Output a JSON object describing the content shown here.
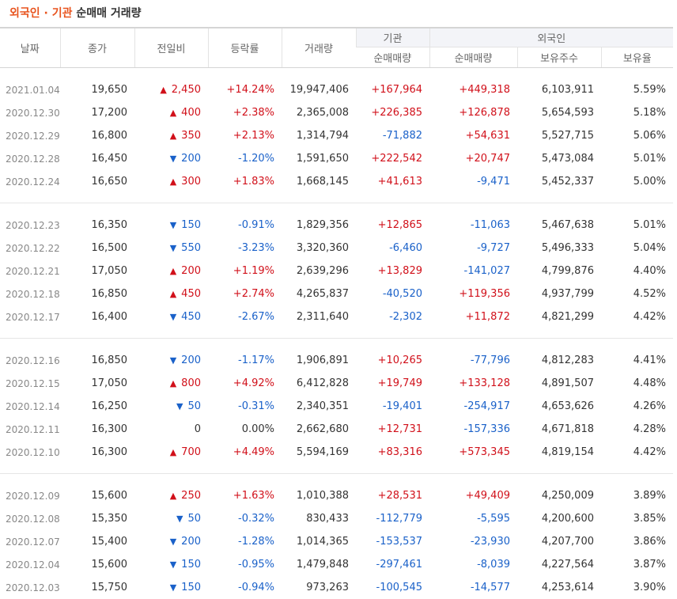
{
  "header": {
    "title_highlight": "외국인 · 기관",
    "title_rest": "순매매 거래량"
  },
  "columns": {
    "date": "날짜",
    "close": "종가",
    "diff": "전일비",
    "rate": "등락률",
    "volume": "거래량",
    "inst_group": "기관",
    "inst_net": "순매매량",
    "foreign_group": "외국인",
    "foreign_net": "순매매량",
    "foreign_hold": "보유주수",
    "foreign_ratio": "보유율"
  },
  "colors": {
    "up": "#d1101a",
    "down": "#1a61c9",
    "title_accent": "#e8541e"
  },
  "rows": [
    {
      "date": "2021.01.04",
      "close": "19,650",
      "dir": "up",
      "diff": "2,450",
      "rate": "+14.24%",
      "volume": "19,947,406",
      "inst": "+167,964",
      "fnet": "+449,318",
      "fhold": "6,103,911",
      "fratio": "5.59%"
    },
    {
      "date": "2020.12.30",
      "close": "17,200",
      "dir": "up",
      "diff": "400",
      "rate": "+2.38%",
      "volume": "2,365,008",
      "inst": "+226,385",
      "fnet": "+126,878",
      "fhold": "5,654,593",
      "fratio": "5.18%"
    },
    {
      "date": "2020.12.29",
      "close": "16,800",
      "dir": "up",
      "diff": "350",
      "rate": "+2.13%",
      "volume": "1,314,794",
      "inst": "-71,882",
      "fnet": "+54,631",
      "fhold": "5,527,715",
      "fratio": "5.06%"
    },
    {
      "date": "2020.12.28",
      "close": "16,450",
      "dir": "down",
      "diff": "200",
      "rate": "-1.20%",
      "volume": "1,591,650",
      "inst": "+222,542",
      "fnet": "+20,747",
      "fhold": "5,473,084",
      "fratio": "5.01%"
    },
    {
      "date": "2020.12.24",
      "close": "16,650",
      "dir": "up",
      "diff": "300",
      "rate": "+1.83%",
      "volume": "1,668,145",
      "inst": "+41,613",
      "fnet": "-9,471",
      "fhold": "5,452,337",
      "fratio": "5.00%"
    },
    {
      "date": "2020.12.23",
      "close": "16,350",
      "dir": "down",
      "diff": "150",
      "rate": "-0.91%",
      "volume": "1,829,356",
      "inst": "+12,865",
      "fnet": "-11,063",
      "fhold": "5,467,638",
      "fratio": "5.01%"
    },
    {
      "date": "2020.12.22",
      "close": "16,500",
      "dir": "down",
      "diff": "550",
      "rate": "-3.23%",
      "volume": "3,320,360",
      "inst": "-6,460",
      "fnet": "-9,727",
      "fhold": "5,496,333",
      "fratio": "5.04%"
    },
    {
      "date": "2020.12.21",
      "close": "17,050",
      "dir": "up",
      "diff": "200",
      "rate": "+1.19%",
      "volume": "2,639,296",
      "inst": "+13,829",
      "fnet": "-141,027",
      "fhold": "4,799,876",
      "fratio": "4.40%"
    },
    {
      "date": "2020.12.18",
      "close": "16,850",
      "dir": "up",
      "diff": "450",
      "rate": "+2.74%",
      "volume": "4,265,837",
      "inst": "-40,520",
      "fnet": "+119,356",
      "fhold": "4,937,799",
      "fratio": "4.52%"
    },
    {
      "date": "2020.12.17",
      "close": "16,400",
      "dir": "down",
      "diff": "450",
      "rate": "-2.67%",
      "volume": "2,311,640",
      "inst": "-2,302",
      "fnet": "+11,872",
      "fhold": "4,821,299",
      "fratio": "4.42%"
    },
    {
      "date": "2020.12.16",
      "close": "16,850",
      "dir": "down",
      "diff": "200",
      "rate": "-1.17%",
      "volume": "1,906,891",
      "inst": "+10,265",
      "fnet": "-77,796",
      "fhold": "4,812,283",
      "fratio": "4.41%"
    },
    {
      "date": "2020.12.15",
      "close": "17,050",
      "dir": "up",
      "diff": "800",
      "rate": "+4.92%",
      "volume": "6,412,828",
      "inst": "+19,749",
      "fnet": "+133,128",
      "fhold": "4,891,507",
      "fratio": "4.48%"
    },
    {
      "date": "2020.12.14",
      "close": "16,250",
      "dir": "down",
      "diff": "50",
      "rate": "-0.31%",
      "volume": "2,340,351",
      "inst": "-19,401",
      "fnet": "-254,917",
      "fhold": "4,653,626",
      "fratio": "4.26%"
    },
    {
      "date": "2020.12.11",
      "close": "16,300",
      "dir": "none",
      "diff": "0",
      "rate": "0.00%",
      "volume": "2,662,680",
      "inst": "+12,731",
      "fnet": "-157,336",
      "fhold": "4,671,818",
      "fratio": "4.28%"
    },
    {
      "date": "2020.12.10",
      "close": "16,300",
      "dir": "up",
      "diff": "700",
      "rate": "+4.49%",
      "volume": "5,594,169",
      "inst": "+83,316",
      "fnet": "+573,345",
      "fhold": "4,819,154",
      "fratio": "4.42%"
    },
    {
      "date": "2020.12.09",
      "close": "15,600",
      "dir": "up",
      "diff": "250",
      "rate": "+1.63%",
      "volume": "1,010,388",
      "inst": "+28,531",
      "fnet": "+49,409",
      "fhold": "4,250,009",
      "fratio": "3.89%"
    },
    {
      "date": "2020.12.08",
      "close": "15,350",
      "dir": "down",
      "diff": "50",
      "rate": "-0.32%",
      "volume": "830,433",
      "inst": "-112,779",
      "fnet": "-5,595",
      "fhold": "4,200,600",
      "fratio": "3.85%"
    },
    {
      "date": "2020.12.07",
      "close": "15,400",
      "dir": "down",
      "diff": "200",
      "rate": "-1.28%",
      "volume": "1,014,365",
      "inst": "-153,537",
      "fnet": "-23,930",
      "fhold": "4,207,700",
      "fratio": "3.86%"
    },
    {
      "date": "2020.12.04",
      "close": "15,600",
      "dir": "down",
      "diff": "150",
      "rate": "-0.95%",
      "volume": "1,479,848",
      "inst": "-297,461",
      "fnet": "-8,039",
      "fhold": "4,227,564",
      "fratio": "3.87%"
    },
    {
      "date": "2020.12.03",
      "close": "15,750",
      "dir": "down",
      "diff": "150",
      "rate": "-0.94%",
      "volume": "973,263",
      "inst": "-100,545",
      "fnet": "-14,577",
      "fhold": "4,253,614",
      "fratio": "3.90%"
    }
  ]
}
